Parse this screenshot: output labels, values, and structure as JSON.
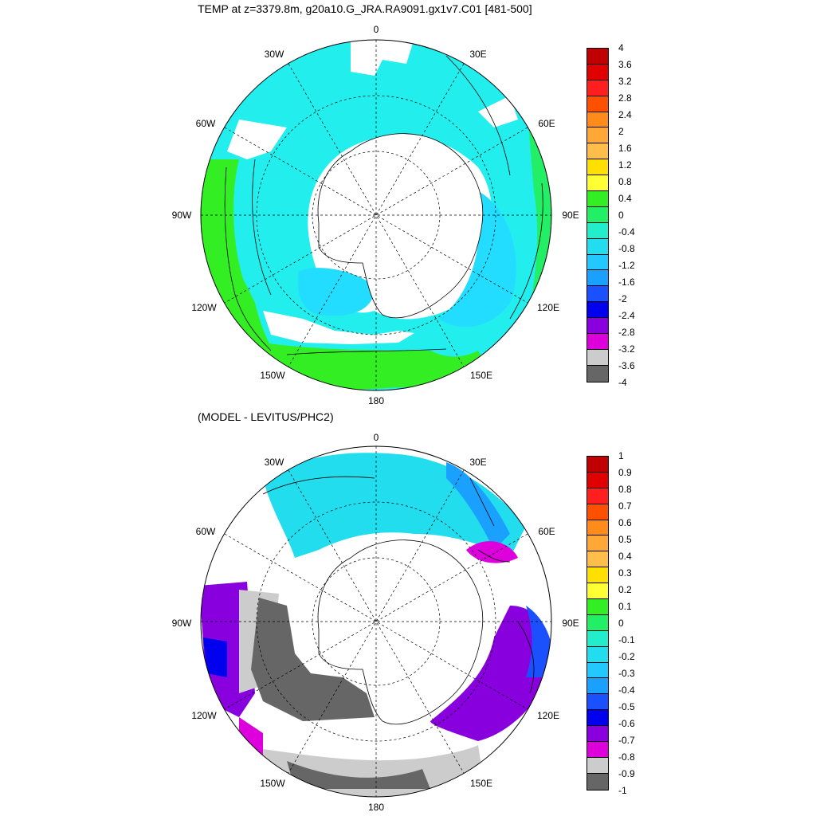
{
  "panels": {
    "top": {
      "title": "TEMP at z=3379.8m, g20a10.G_JRA.RA9091.gx1v7.C01 [481-500]",
      "colorbar_labels": [
        "4",
        "3.6",
        "3.2",
        "2.8",
        "2.4",
        "2",
        "1.6",
        "1.2",
        "0.8",
        "0.4",
        "0",
        "-0.4",
        "-0.8",
        "-1.2",
        "-1.6",
        "-2",
        "-2.4",
        "-2.8",
        "-3.2",
        "-3.6",
        "-4"
      ]
    },
    "bottom": {
      "title": "(MODEL - LEVITUS/PHC2)",
      "colorbar_labels": [
        "1",
        "0.9",
        "0.8",
        "0.7",
        "0.6",
        "0.5",
        "0.4",
        "0.3",
        "0.2",
        "0.1",
        "0",
        "-0.1",
        "-0.2",
        "-0.3",
        "-0.4",
        "-0.5",
        "-0.6",
        "-0.7",
        "-0.8",
        "-0.9",
        "-1"
      ]
    }
  },
  "longitude_labels": [
    "0",
    "30E",
    "60E",
    "90E",
    "120E",
    "150E",
    "180",
    "150W",
    "120W",
    "90W",
    "60W",
    "30W"
  ],
  "colorbar_colors": [
    "#c00000",
    "#e00000",
    "#ff1f1f",
    "#ff5000",
    "#ff8c1a",
    "#ffa838",
    "#ffbe4a",
    "#ffe000",
    "#ffff33",
    "#33ee22",
    "#22ee66",
    "#22eecc",
    "#22ddee",
    "#22c8ff",
    "#1aa0ff",
    "#1a50ff",
    "#0000ee",
    "#8800dd",
    "#dd00dd",
    "#cccccc",
    "#666666"
  ],
  "map_colors": {
    "ocean_cyan": "#22eeee",
    "ocean_lightblue": "#22ddff",
    "ocean_green": "#33ee22",
    "ocean_green2": "#22ee66",
    "diff_cyan": "#22ddee",
    "diff_blue": "#1aa0ff",
    "diff_darkblue": "#1a50ff",
    "diff_purple": "#8800dd",
    "diff_magenta": "#dd00dd",
    "diff_gray": "#cccccc",
    "diff_darkgray": "#666666"
  }
}
